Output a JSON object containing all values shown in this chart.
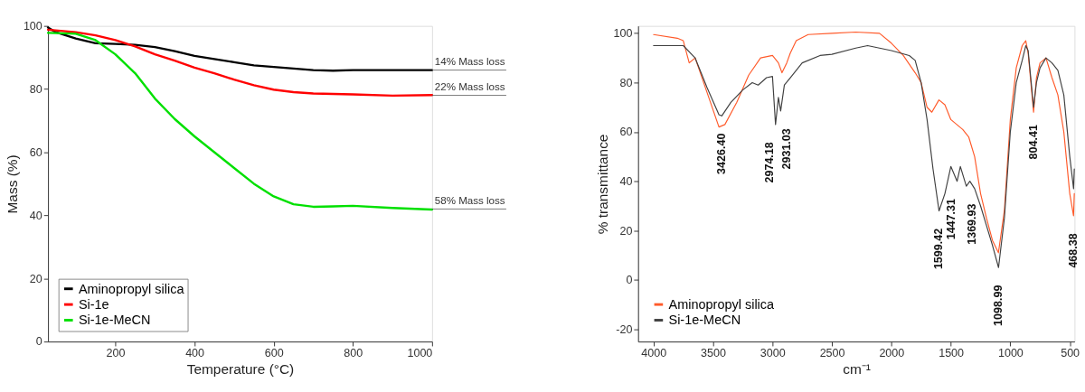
{
  "chart_data": [
    {
      "type": "line",
      "xlabel": "Temperature (°C)",
      "ylabel": "Mass (%)",
      "xlim": [
        30,
        1000
      ],
      "xticks": [
        200,
        400,
        600,
        800,
        {
          "value": 1000,
          "label": "1000"
        }
      ],
      "ylim": [
        0,
        100
      ],
      "yticks": [
        0,
        20,
        40,
        60,
        80,
        100
      ],
      "grid": false,
      "legend": "bottom left",
      "marker": "none",
      "line_style": "solid",
      "annotations": [
        {
          "text": "14% Mass loss",
          "x": 1000,
          "y": 86
        },
        {
          "text": "22% Mass loss",
          "x": 1000,
          "y": 78
        },
        {
          "text": "58% Mass loss",
          "x": 1000,
          "y": 42
        }
      ],
      "series": [
        {
          "name": "Aminopropyl silica",
          "color": "#000000",
          "x": [
            30,
            50,
            100,
            150,
            200,
            250,
            300,
            350,
            400,
            450,
            500,
            550,
            600,
            650,
            700,
            750,
            800,
            900,
            1000
          ],
          "values": [
            99.5,
            98,
            96,
            94.5,
            94.3,
            94,
            93.3,
            92,
            90.5,
            89.5,
            88.5,
            87.5,
            87,
            86.5,
            86,
            85.8,
            86,
            86,
            86
          ]
        },
        {
          "name": "Si-1e",
          "color": "#ff0000",
          "x": [
            30,
            100,
            150,
            200,
            250,
            300,
            350,
            400,
            450,
            500,
            550,
            600,
            650,
            700,
            800,
            900,
            1000
          ],
          "values": [
            98.8,
            98,
            97,
            95.5,
            93.5,
            91,
            89,
            86.8,
            85,
            83,
            81.2,
            79.8,
            79,
            78.6,
            78.3,
            77.9,
            78.1
          ]
        },
        {
          "name": "Si-1e-MeCN",
          "color": "#00e000",
          "x": [
            30,
            100,
            150,
            200,
            250,
            300,
            350,
            400,
            450,
            500,
            550,
            600,
            650,
            700,
            750,
            800,
            900,
            1000
          ],
          "values": [
            97.8,
            97.5,
            95.5,
            91,
            85,
            77,
            70.5,
            65,
            60,
            55,
            50,
            46,
            43.5,
            42.7,
            42.8,
            43,
            42.3,
            41.8
          ]
        }
      ]
    },
    {
      "type": "line",
      "xlabel": "cm⁻¹",
      "ylabel": "% transmittance",
      "xlim": [
        4130,
        460
      ],
      "xticks": [
        {
          "value": 4000,
          "label": "4000"
        },
        {
          "value": 3500,
          "label": "3500"
        },
        {
          "value": 3000,
          "label": "3000"
        },
        {
          "value": 2500,
          "label": "2500"
        },
        {
          "value": 2000,
          "label": "2000"
        },
        {
          "value": 1500,
          "label": "1500"
        },
        {
          "value": 1000,
          "label": "1000"
        },
        500
      ],
      "ylim": [
        -25,
        103
      ],
      "yticks": [
        -20,
        0,
        20,
        40,
        60,
        80,
        100
      ],
      "grid": false,
      "legend": "bottom left",
      "marker": "none",
      "line_style": "solid",
      "annotations": [
        {
          "text": "3426.40",
          "x": 3426.4,
          "y": 66.5
        },
        {
          "text": "2974.18",
          "x": 2974.18,
          "y": 63
        },
        {
          "text": "2931.03",
          "x": 2931.03,
          "y": 68.5
        },
        {
          "text": "1599.42",
          "x": 1599.42,
          "y": 28
        },
        {
          "text": "1447.31",
          "x": 1447.31,
          "y": 40
        },
        {
          "text": "1369.93",
          "x": 1369.93,
          "y": 38
        },
        {
          "text": "1098.99",
          "x": 1098.99,
          "y": 5
        },
        {
          "text": "804.41",
          "x": 804.41,
          "y": 70
        },
        {
          "text": "468.38",
          "x": 468.38,
          "y": 26
        }
      ],
      "series": [
        {
          "name": "Aminopropyl silica",
          "color": "#ff5a2a",
          "x": [
            4000,
            3800,
            3750,
            3700,
            3650,
            3550,
            3450,
            3400,
            3300,
            3200,
            3100,
            3000,
            2950,
            2920,
            2880,
            2850,
            2800,
            2700,
            2500,
            2300,
            2100,
            2000,
            1900,
            1800,
            1750,
            1700,
            1660,
            1600,
            1550,
            1500,
            1400,
            1350,
            1300,
            1250,
            1200,
            1150,
            1100,
            1050,
            1000,
            950,
            900,
            870,
            850,
            804.41,
            780,
            750,
            700,
            650,
            600,
            550,
            500,
            468.38,
            462
          ],
          "values": [
            99.5,
            98,
            97,
            88,
            90,
            76,
            62,
            63,
            72,
            83,
            90,
            91,
            88,
            84,
            88,
            92,
            97,
            99.5,
            100,
            100.5,
            100,
            96,
            91,
            84,
            80,
            70,
            68,
            73,
            71,
            65,
            61,
            58,
            50,
            35,
            25,
            16,
            11,
            28,
            65,
            86,
            95,
            97,
            92,
            68,
            82,
            88,
            90,
            82,
            75,
            60,
            35,
            26,
            35
          ]
        },
        {
          "name": "Si-1e-MeCN",
          "color": "#404040",
          "x": [
            4000,
            3750,
            3650,
            3550,
            3450,
            3426.4,
            3350,
            3250,
            3170,
            3120,
            3050,
            3000,
            2974.18,
            2950,
            2931.03,
            2900,
            2850,
            2750,
            2600,
            2500,
            2300,
            2200,
            2000,
            1850,
            1800,
            1750,
            1700,
            1650,
            1599.42,
            1550,
            1500,
            1447.31,
            1420,
            1369.93,
            1340,
            1300,
            1250,
            1200,
            1150,
            1098.99,
            1050,
            1000,
            950,
            900,
            870,
            850,
            804.41,
            780,
            750,
            700,
            650,
            600,
            550,
            500,
            468,
            462
          ],
          "values": [
            95,
            95,
            90,
            78,
            67,
            66.5,
            72,
            77,
            80,
            79,
            82,
            82.5,
            63,
            74,
            68.5,
            79,
            82,
            88,
            91,
            91.5,
            94,
            95,
            93,
            91,
            89,
            80,
            65,
            45,
            28,
            35,
            46,
            40,
            46,
            38,
            40,
            37,
            30,
            22,
            14,
            5,
            25,
            60,
            80,
            89,
            95,
            93,
            70,
            80,
            86,
            90,
            88,
            85,
            75,
            50,
            37,
            45
          ]
        }
      ]
    }
  ]
}
